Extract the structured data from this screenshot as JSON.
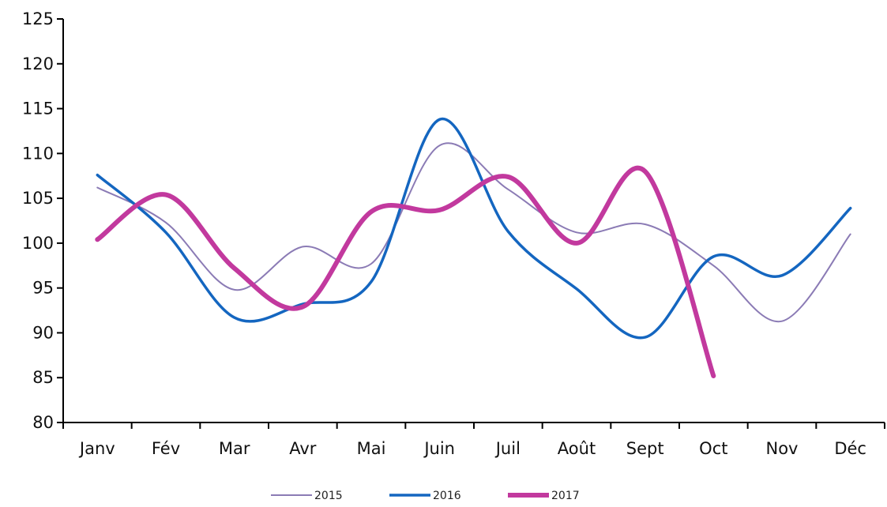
{
  "chart_data": {
    "type": "line",
    "title": "",
    "xlabel": "",
    "ylabel": "",
    "categories": [
      "Janv",
      "Fév",
      "Mar",
      "Avr",
      "Mai",
      "Juin",
      "Juil",
      "Août",
      "Sept",
      "Oct",
      "Nov",
      "Déc"
    ],
    "ylim": [
      80,
      125
    ],
    "yticks": [
      "80",
      "85",
      "90",
      "95",
      "100",
      "105",
      "110",
      "115",
      "120",
      "125"
    ],
    "grid": false,
    "legend_position": "bottom",
    "series": [
      {
        "name": "2015",
        "color": "#8B7BB5",
        "line": "thin",
        "values": [
          106.2,
          102.3,
          94.8,
          99.6,
          97.7,
          110.9,
          106.0,
          101.2,
          102.1,
          97.5,
          91.3,
          101.0
        ]
      },
      {
        "name": "2016",
        "color": "#1466C0",
        "line": "medium",
        "values": [
          107.6,
          101.2,
          91.7,
          93.2,
          95.7,
          113.8,
          101.3,
          94.9,
          89.5,
          98.5,
          96.4,
          103.9
        ]
      },
      {
        "name": "2017",
        "color": "#C2399E",
        "line": "thick",
        "values": [
          100.4,
          105.4,
          97.2,
          92.9,
          103.5,
          103.7,
          107.4,
          100.0,
          108.0,
          85.2,
          null,
          null
        ]
      }
    ]
  }
}
